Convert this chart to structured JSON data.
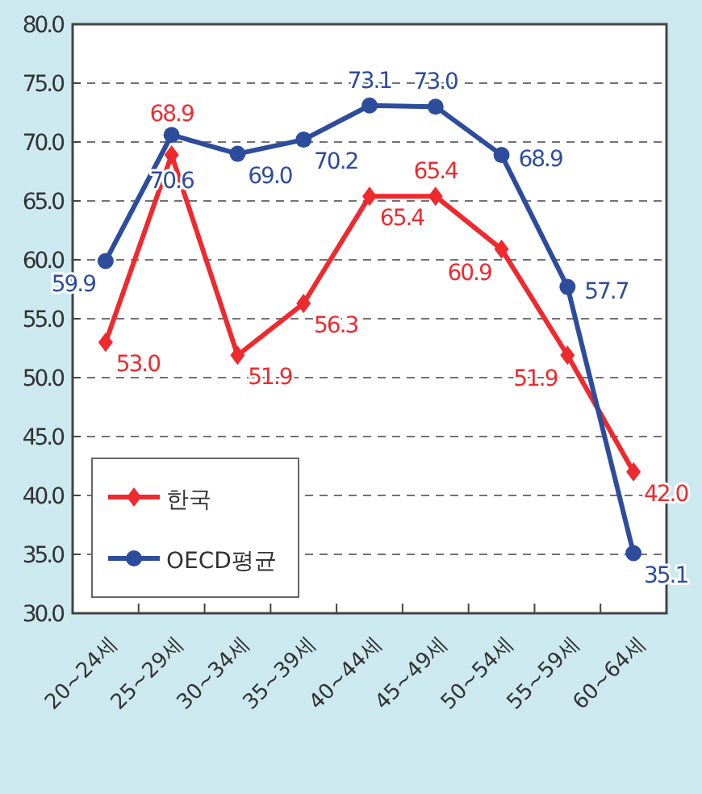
{
  "chart_data": {
    "type": "line",
    "categories": [
      "20~24세",
      "25~29세",
      "30~34세",
      "35~39세",
      "40~44세",
      "45~49세",
      "50~54세",
      "55~59세",
      "60~64세"
    ],
    "ylim": [
      30,
      80
    ],
    "yticks": [
      {
        "value": 30,
        "label": "30.0"
      },
      {
        "value": 35,
        "label": "35.0"
      },
      {
        "value": 40,
        "label": "40.0"
      },
      {
        "value": 45,
        "label": "45.0"
      },
      {
        "value": 50,
        "label": "50.0"
      },
      {
        "value": 55,
        "label": "55.0"
      },
      {
        "value": 60,
        "label": "60.0"
      },
      {
        "value": 65,
        "label": "65.0"
      },
      {
        "value": 70,
        "label": "70.0"
      },
      {
        "value": 75,
        "label": "75.0"
      },
      {
        "value": 80,
        "label": "80.0"
      }
    ],
    "grid": "y",
    "legend": "bottom left",
    "series": [
      {
        "name": "한국",
        "color": "#ee2a2e",
        "marker": "diamond",
        "values": [
          53.0,
          68.9,
          51.9,
          56.3,
          65.4,
          65.4,
          60.9,
          51.9,
          42.0
        ],
        "value_labels": [
          "53.0",
          "68.9",
          "51.9",
          "56.3",
          "65.4",
          "65.4",
          "60.9",
          "51.9",
          "42.0"
        ]
      },
      {
        "name": "OECD평균",
        "color": "#2d4d9c",
        "marker": "circle",
        "values": [
          59.9,
          70.6,
          69.0,
          70.2,
          73.1,
          73.0,
          68.9,
          57.7,
          35.1
        ],
        "value_labels": [
          "59.9",
          "70.6",
          "69.0",
          "70.2",
          "73.1",
          "73.0",
          "68.9",
          "57.7",
          "35.1"
        ]
      }
    ]
  }
}
